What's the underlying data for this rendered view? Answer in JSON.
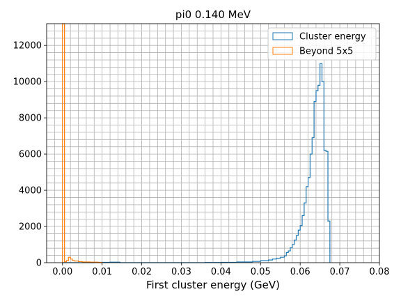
{
  "chart_data": {
    "type": "histogram",
    "title": "pi0 0.140 MeV",
    "xlabel": "First cluster energy (GeV)",
    "ylabel": "",
    "xlim": [
      -0.004,
      0.08
    ],
    "ylim": [
      0,
      13200
    ],
    "x_ticks": [
      0.0,
      0.01,
      0.02,
      0.03,
      0.04,
      0.05,
      0.06,
      0.07,
      0.08
    ],
    "x_tick_labels": [
      "0.00",
      "0.01",
      "0.02",
      "0.03",
      "0.04",
      "0.05",
      "0.06",
      "0.07",
      "0.08"
    ],
    "y_ticks": [
      0,
      2000,
      4000,
      6000,
      8000,
      10000,
      12000
    ],
    "y_tick_labels": [
      "0",
      "2000",
      "4000",
      "6000",
      "8000",
      "10000",
      "12000"
    ],
    "grid": true,
    "minor_grid": true,
    "legend_position": "top-right",
    "series": [
      {
        "name": "Cluster energy",
        "color": "#1f77b4",
        "points": [
          [
            0.0,
            0
          ],
          [
            0.008,
            20
          ],
          [
            0.012,
            30
          ],
          [
            0.0145,
            0
          ],
          [
            0.036,
            10
          ],
          [
            0.04,
            20
          ],
          [
            0.044,
            40
          ],
          [
            0.048,
            70
          ],
          [
            0.05,
            110
          ],
          [
            0.052,
            150
          ],
          [
            0.053,
            200
          ],
          [
            0.054,
            240
          ],
          [
            0.055,
            300
          ],
          [
            0.056,
            380
          ],
          [
            0.0565,
            560
          ],
          [
            0.057,
            650
          ],
          [
            0.0575,
            820
          ],
          [
            0.058,
            1000
          ],
          [
            0.0585,
            1250
          ],
          [
            0.059,
            1500
          ],
          [
            0.0595,
            1800
          ],
          [
            0.06,
            2050
          ],
          [
            0.0605,
            2600
          ],
          [
            0.061,
            3300
          ],
          [
            0.0615,
            4200
          ],
          [
            0.062,
            4700
          ],
          [
            0.0625,
            6000
          ],
          [
            0.063,
            6900
          ],
          [
            0.0635,
            8900
          ],
          [
            0.064,
            9500
          ],
          [
            0.0645,
            9800
          ],
          [
            0.065,
            11000
          ],
          [
            0.0655,
            10000
          ],
          [
            0.066,
            6200
          ],
          [
            0.0665,
            6150
          ],
          [
            0.067,
            2300
          ],
          [
            0.0675,
            0
          ]
        ]
      },
      {
        "name": "Beyond 5x5",
        "color": "#ff7f0e",
        "points": [
          [
            0.0,
            13200
          ],
          [
            0.0005,
            50
          ],
          [
            0.001,
            120
          ],
          [
            0.0015,
            300
          ],
          [
            0.002,
            200
          ],
          [
            0.0025,
            120
          ],
          [
            0.003,
            90
          ],
          [
            0.004,
            60
          ],
          [
            0.005,
            40
          ],
          [
            0.007,
            30
          ],
          [
            0.009,
            15
          ],
          [
            0.01,
            0
          ]
        ]
      }
    ]
  }
}
